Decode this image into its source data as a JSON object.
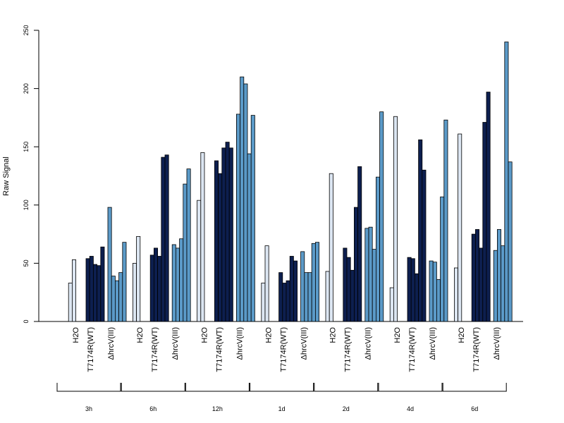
{
  "chart_data": {
    "type": "bar",
    "title": "",
    "xlabel": "",
    "ylabel": "Raw Signal",
    "ylim": [
      0,
      250
    ],
    "yticks": [
      0,
      50,
      100,
      150,
      200,
      250
    ],
    "grid": false,
    "legend": "none",
    "colors": {
      "H2O": "#dce6f2",
      "T7174R(WT)": "#0d1f4f",
      "ΔhrcV(III)": "#5b9ac8"
    },
    "conditions": [
      "H2O",
      "T7174R(WT)",
      "ΔhrcV(III)"
    ],
    "groups": [
      {
        "time": "3h",
        "H2O": [
          0,
          33,
          53
        ],
        "T7174R(WT)": [
          54,
          56,
          49,
          48,
          64
        ],
        "ΔhrcV(III)": [
          98,
          39,
          35,
          42,
          68
        ]
      },
      {
        "time": "6h",
        "H2O": [
          0,
          50,
          73
        ],
        "T7174R(WT)": [
          57,
          63,
          56,
          141,
          143
        ],
        "ΔhrcV(III)": [
          66,
          63,
          71,
          118,
          131
        ]
      },
      {
        "time": "12h",
        "H2O": [
          0,
          104,
          145
        ],
        "T7174R(WT)": [
          138,
          127,
          149,
          154,
          149
        ],
        "ΔhrcV(III)": [
          178,
          210,
          204,
          144,
          177
        ]
      },
      {
        "time": "1d",
        "H2O": [
          0,
          33,
          65
        ],
        "T7174R(WT)": [
          42,
          33,
          35,
          56,
          52
        ],
        "ΔhrcV(III)": [
          60,
          42,
          42,
          67,
          68
        ]
      },
      {
        "time": "2d",
        "H2O": [
          0,
          43,
          127
        ],
        "T7174R(WT)": [
          63,
          55,
          44,
          98,
          133
        ],
        "ΔhrcV(III)": [
          80,
          81,
          62,
          124,
          180
        ]
      },
      {
        "time": "4d",
        "H2O": [
          0,
          29,
          176
        ],
        "T7174R(WT)": [
          55,
          54,
          41,
          156,
          130
        ],
        "ΔhrcV(III)": [
          52,
          51,
          36,
          107,
          173
        ]
      },
      {
        "time": "6d",
        "H2O": [
          0,
          46,
          161
        ],
        "T7174R(WT)": [
          75,
          79,
          63,
          171,
          197
        ],
        "ΔhrcV(III)": [
          61,
          79,
          65,
          240,
          137
        ]
      }
    ]
  }
}
